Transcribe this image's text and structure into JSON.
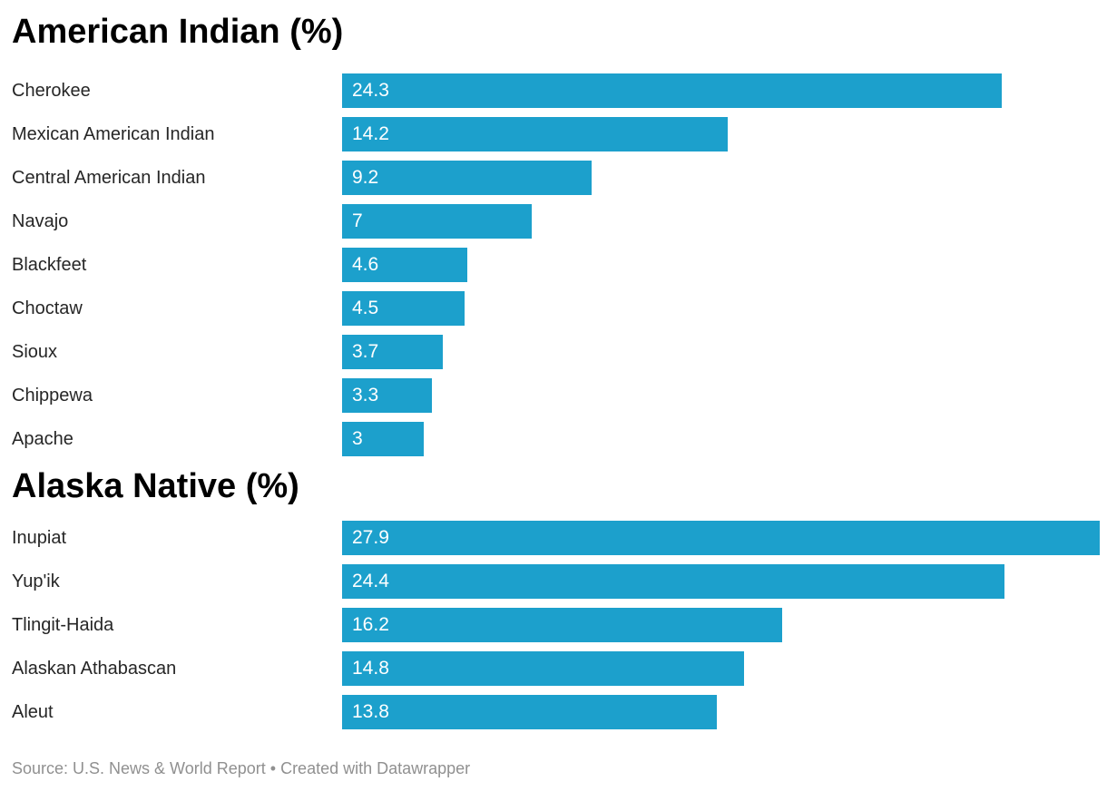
{
  "colors": {
    "bar": "#1ca0cc",
    "section_title": "#000000",
    "category_label": "#262626",
    "value_label": "#ffffff",
    "footer_text": "#909090",
    "background": "#ffffff"
  },
  "chart_data": [
    {
      "type": "bar",
      "orientation": "horizontal",
      "title": "American Indian (%)",
      "categories": [
        "Cherokee",
        "Mexican American Indian",
        "Central American Indian",
        "Navajo",
        "Blackfeet",
        "Choctaw",
        "Sioux",
        "Chippewa",
        "Apache"
      ],
      "values": [
        24.3,
        14.2,
        9.2,
        7,
        4.6,
        4.5,
        3.7,
        3.3,
        3
      ],
      "value_labels": [
        "24.3",
        "14.2",
        "9.2",
        "7",
        "4.6",
        "4.5",
        "3.7",
        "3.3",
        "3"
      ],
      "xlim": [
        0,
        27.9
      ],
      "grid": false,
      "legend": false,
      "value_label_position": "inside-start"
    },
    {
      "type": "bar",
      "orientation": "horizontal",
      "title": "Alaska Native (%)",
      "categories": [
        "Inupiat",
        "Yup'ik",
        "Tlingit-Haida",
        "Alaskan Athabascan",
        "Aleut"
      ],
      "values": [
        27.9,
        24.4,
        16.2,
        14.8,
        13.8
      ],
      "value_labels": [
        "27.9",
        "24.4",
        "16.2",
        "14.8",
        "13.8"
      ],
      "xlim": [
        0,
        27.9
      ],
      "grid": false,
      "legend": false,
      "value_label_position": "inside-start"
    }
  ],
  "footer": {
    "text": "Source: U.S. News & World Report • Created with Datawrapper"
  }
}
